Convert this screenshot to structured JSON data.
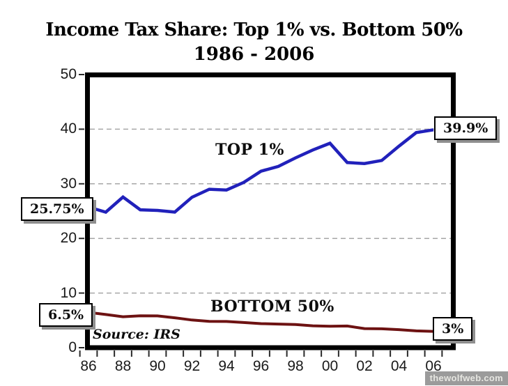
{
  "title": {
    "line1": "Income Tax Share: Top 1% vs. Bottom 50%",
    "line2": "1986 - 2006"
  },
  "chart_data": {
    "type": "line",
    "title": "Income Tax Share: Top 1% vs. Bottom 50%",
    "subtitle": "1986 - 2006",
    "x": [
      1986,
      1987,
      1988,
      1989,
      1990,
      1991,
      1992,
      1993,
      1994,
      1995,
      1996,
      1997,
      1998,
      1999,
      2000,
      2001,
      2002,
      2003,
      2004,
      2005,
      2006
    ],
    "series": [
      {
        "name": "TOP 1%",
        "color": "#2121bb",
        "values": [
          25.75,
          24.81,
          27.58,
          25.24,
          25.13,
          24.82,
          27.54,
          29.01,
          28.86,
          30.26,
          32.31,
          33.17,
          34.75,
          36.18,
          37.42,
          33.89,
          33.71,
          34.27,
          36.89,
          39.38,
          39.89
        ]
      },
      {
        "name": "BOTTOM 50%",
        "color": "#6d1212",
        "values": [
          6.46,
          6.07,
          5.66,
          5.83,
          5.81,
          5.47,
          5.06,
          4.81,
          4.8,
          4.6,
          4.4,
          4.32,
          4.24,
          4.0,
          3.91,
          3.97,
          3.5,
          3.46,
          3.3,
          3.07,
          2.99
        ]
      }
    ],
    "ylim": [
      0,
      50
    ],
    "yticks": [
      0,
      10,
      20,
      30,
      40,
      50
    ],
    "xtick_years": [
      1986,
      1988,
      1990,
      1992,
      1994,
      1996,
      1998,
      2000,
      2002,
      2004,
      2006
    ],
    "xtick_labels": [
      "86",
      "88",
      "90",
      "92",
      "94",
      "96",
      "98",
      "00",
      "02",
      "04",
      "06"
    ],
    "grid": "horizontal dashed gridlines at 10,20,30,40",
    "legend": "none (inline series labels)",
    "annotations": {
      "top1_start": "25.75%",
      "top1_end": "39.9%",
      "bottom50_start": "6.5%",
      "bottom50_end": "3%"
    }
  },
  "source_note": "Source: IRS",
  "watermark": "thewolfweb.com",
  "colors": {
    "axis": "#000000",
    "grid": "#a6a6a6",
    "tick": "#2a2a2a",
    "top1_line": "#2121bb",
    "bottom50_line": "#6d1212",
    "callout_shadow": "#8f8f8f"
  }
}
